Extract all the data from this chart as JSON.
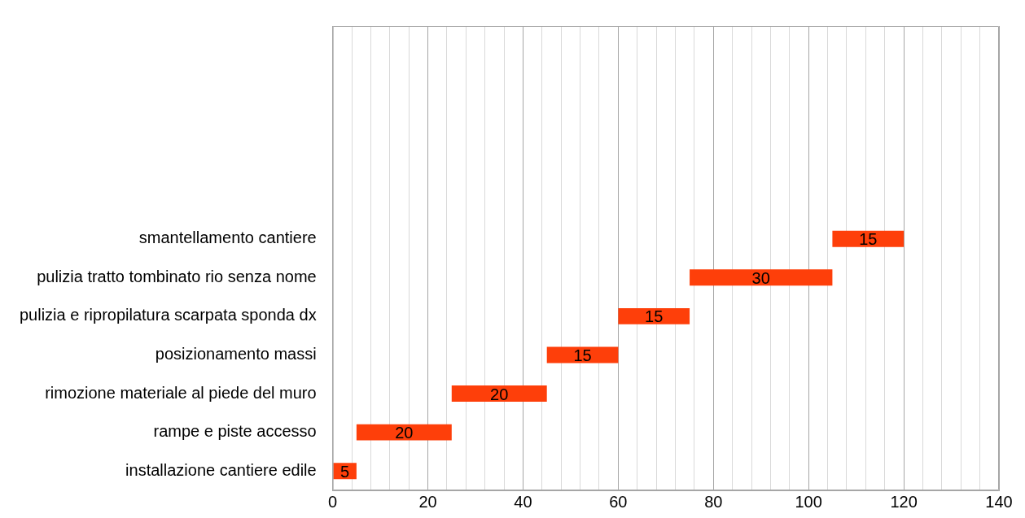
{
  "chart_data": {
    "type": "bar",
    "orientation": "horizontal",
    "categories": [
      null,
      null,
      null,
      null,
      null,
      "smantellamento cantiere",
      "pulizia tratto tombinato rio senza nome",
      "pulizia e ripropilatura scarpata sponda dx",
      "posizionamento massi",
      "rimozione materiale al piede del muro",
      "rampe e piste accesso",
      "installazione cantiere edile"
    ],
    "base": [
      null,
      null,
      null,
      null,
      null,
      105,
      75,
      60,
      45,
      25,
      5,
      0
    ],
    "values": [
      null,
      null,
      null,
      null,
      null,
      15,
      30,
      15,
      15,
      20,
      20,
      5
    ],
    "color": "#fe3f0a",
    "data_labels": true,
    "grid": "x",
    "legend": false,
    "xlim": [
      0,
      140
    ],
    "xticks": [
      0,
      {
        "value": 4,
        "label": null
      },
      {
        "value": 8,
        "label": null
      },
      {
        "value": 12,
        "label": null
      },
      {
        "value": 16,
        "label": null
      },
      20,
      {
        "value": 24,
        "label": null
      },
      {
        "value": 28,
        "label": null
      },
      {
        "value": 32,
        "label": null
      },
      {
        "value": 36,
        "label": null
      },
      40,
      {
        "value": 44,
        "label": null
      },
      {
        "value": 48,
        "label": null
      },
      {
        "value": 52,
        "label": null
      },
      {
        "value": 56,
        "label": null
      },
      60,
      {
        "value": 64,
        "label": null
      },
      {
        "value": 68,
        "label": null
      },
      {
        "value": 72,
        "label": null
      },
      {
        "value": 76,
        "label": null
      },
      80,
      {
        "value": 84,
        "label": null
      },
      {
        "value": 88,
        "label": null
      },
      {
        "value": 92,
        "label": null
      },
      {
        "value": 96,
        "label": null
      },
      100,
      {
        "value": 104,
        "label": null
      },
      {
        "value": 108,
        "label": null
      },
      {
        "value": 112,
        "label": null
      },
      {
        "value": 116,
        "label": null
      },
      120,
      {
        "value": 124,
        "label": null
      },
      {
        "value": 128,
        "label": null
      },
      {
        "value": 132,
        "label": null
      },
      {
        "value": 136,
        "label": null
      },
      140
    ]
  }
}
